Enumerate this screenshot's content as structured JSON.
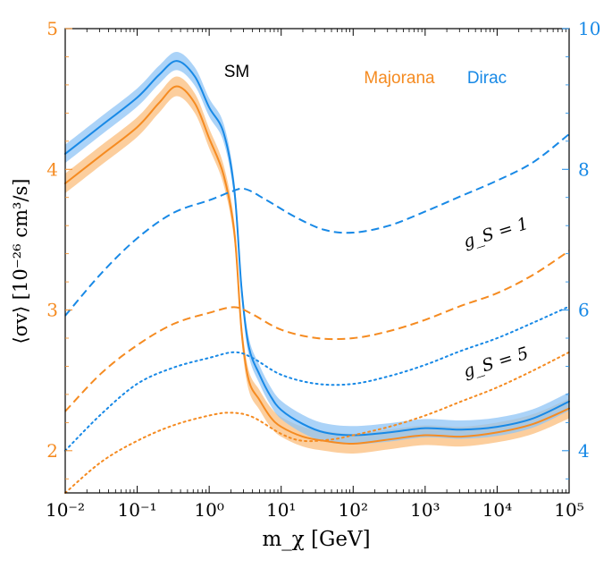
{
  "chart_data": {
    "type": "line",
    "x_scale": "log",
    "xlim_exp": [
      -2,
      5
    ],
    "ylim_left": [
      1.7,
      5.0
    ],
    "ylim_right": [
      3.4,
      10.0
    ],
    "xlabel": "m_χ  [GeV]",
    "ylabel": "⟨σv⟩  [10⁻²⁶ cm³/s]",
    "x_ticks": [
      {
        "exp": -2,
        "label": "10⁻²"
      },
      {
        "exp": -1,
        "label": "10⁻¹"
      },
      {
        "exp": 0,
        "label": "10⁰"
      },
      {
        "exp": 1,
        "label": "10¹"
      },
      {
        "exp": 2,
        "label": "10²"
      },
      {
        "exp": 3,
        "label": "10³"
      },
      {
        "exp": 4,
        "label": "10⁴"
      },
      {
        "exp": 5,
        "label": "10⁵"
      }
    ],
    "y_ticks_left": [
      2,
      3,
      4,
      5
    ],
    "y_ticks_right": [
      4,
      6,
      8,
      10
    ],
    "legend": {
      "majorana": "Majorana",
      "dirac": "Dirac",
      "sm": "SM"
    },
    "annotations": {
      "gs1": "g_S = 1",
      "gs5": "g_S = 5"
    },
    "colors": {
      "majorana": "#f58b21",
      "dirac": "#1889e6",
      "band_majorana": "#fcc58c",
      "band_dirac": "#8fc4f5",
      "band_overlap": "#a8a8a8"
    },
    "series": [
      {
        "name": "SM Majorana",
        "axis": "left",
        "style": "solid",
        "color": "majorana",
        "band_halfwidth": 0.07,
        "points": [
          [
            -2,
            3.9
          ],
          [
            -1.5,
            4.1
          ],
          [
            -1,
            4.3
          ],
          [
            -0.7,
            4.47
          ],
          [
            -0.45,
            4.59
          ],
          [
            -0.2,
            4.47
          ],
          [
            0,
            4.22
          ],
          [
            0.2,
            3.96
          ],
          [
            0.35,
            3.55
          ],
          [
            0.45,
            2.85
          ],
          [
            0.55,
            2.5
          ],
          [
            0.7,
            2.36
          ],
          [
            0.85,
            2.24
          ],
          [
            1,
            2.17
          ],
          [
            1.3,
            2.1
          ],
          [
            1.6,
            2.07
          ],
          [
            2,
            2.05
          ],
          [
            2.5,
            2.08
          ],
          [
            3,
            2.11
          ],
          [
            3.5,
            2.1
          ],
          [
            4,
            2.13
          ],
          [
            4.5,
            2.19
          ],
          [
            5,
            2.3
          ]
        ]
      },
      {
        "name": "SM Dirac",
        "axis": "right",
        "style": "solid",
        "color": "dirac",
        "band_halfwidth": 0.13,
        "points": [
          [
            -2,
            8.22
          ],
          [
            -1.5,
            8.62
          ],
          [
            -1,
            9.02
          ],
          [
            -0.7,
            9.34
          ],
          [
            -0.45,
            9.54
          ],
          [
            -0.2,
            9.32
          ],
          [
            0,
            8.88
          ],
          [
            0.2,
            8.52
          ],
          [
            0.35,
            7.7
          ],
          [
            0.45,
            6.3
          ],
          [
            0.55,
            5.48
          ],
          [
            0.7,
            5.08
          ],
          [
            0.85,
            4.78
          ],
          [
            1,
            4.58
          ],
          [
            1.3,
            4.38
          ],
          [
            1.6,
            4.26
          ],
          [
            2,
            4.22
          ],
          [
            2.5,
            4.26
          ],
          [
            3,
            4.32
          ],
          [
            3.5,
            4.3
          ],
          [
            4,
            4.34
          ],
          [
            4.5,
            4.46
          ],
          [
            5,
            4.7
          ]
        ]
      },
      {
        "name": "g_S = 1 Dirac",
        "axis": "right",
        "style": "dashed",
        "color": "dirac",
        "points": [
          [
            -2,
            5.92
          ],
          [
            -1.5,
            6.52
          ],
          [
            -1,
            7.02
          ],
          [
            -0.5,
            7.38
          ],
          [
            0,
            7.56
          ],
          [
            0.3,
            7.68
          ],
          [
            0.5,
            7.72
          ],
          [
            0.8,
            7.56
          ],
          [
            1.2,
            7.32
          ],
          [
            1.6,
            7.14
          ],
          [
            2,
            7.1
          ],
          [
            2.5,
            7.2
          ],
          [
            3,
            7.4
          ],
          [
            3.5,
            7.62
          ],
          [
            4,
            7.84
          ],
          [
            4.5,
            8.1
          ],
          [
            5,
            8.5
          ]
        ]
      },
      {
        "name": "g_S = 1 Majorana",
        "axis": "left",
        "style": "dashed",
        "color": "majorana",
        "points": [
          [
            -2,
            2.28
          ],
          [
            -1.5,
            2.55
          ],
          [
            -1,
            2.75
          ],
          [
            -0.5,
            2.9
          ],
          [
            0,
            2.98
          ],
          [
            0.35,
            3.02
          ],
          [
            0.6,
            2.97
          ],
          [
            1,
            2.86
          ],
          [
            1.5,
            2.8
          ],
          [
            2,
            2.8
          ],
          [
            2.5,
            2.85
          ],
          [
            3,
            2.93
          ],
          [
            3.5,
            3.03
          ],
          [
            4,
            3.12
          ],
          [
            4.5,
            3.25
          ],
          [
            5,
            3.42
          ]
        ]
      },
      {
        "name": "g_S = 5 Dirac",
        "axis": "right",
        "style": "dotted",
        "color": "dirac",
        "points": [
          [
            -2,
            4.0
          ],
          [
            -1.5,
            4.52
          ],
          [
            -1,
            4.95
          ],
          [
            -0.5,
            5.18
          ],
          [
            0,
            5.32
          ],
          [
            0.35,
            5.4
          ],
          [
            0.6,
            5.32
          ],
          [
            1,
            5.08
          ],
          [
            1.5,
            4.95
          ],
          [
            2,
            4.95
          ],
          [
            2.5,
            5.06
          ],
          [
            3,
            5.22
          ],
          [
            3.5,
            5.42
          ],
          [
            4,
            5.6
          ],
          [
            4.5,
            5.82
          ],
          [
            5,
            6.05
          ]
        ]
      },
      {
        "name": "g_S = 5 Majorana",
        "axis": "left",
        "style": "dotted",
        "color": "majorana",
        "points": [
          [
            -2,
            1.7
          ],
          [
            -1.5,
            1.92
          ],
          [
            -1,
            2.07
          ],
          [
            -0.5,
            2.18
          ],
          [
            0,
            2.25
          ],
          [
            0.3,
            2.27
          ],
          [
            0.6,
            2.24
          ],
          [
            1,
            2.12
          ],
          [
            1.3,
            2.07
          ],
          [
            1.7,
            2.08
          ],
          [
            2,
            2.11
          ],
          [
            2.5,
            2.17
          ],
          [
            3,
            2.25
          ],
          [
            3.5,
            2.35
          ],
          [
            4,
            2.45
          ],
          [
            4.5,
            2.57
          ],
          [
            5,
            2.7
          ]
        ]
      }
    ]
  }
}
